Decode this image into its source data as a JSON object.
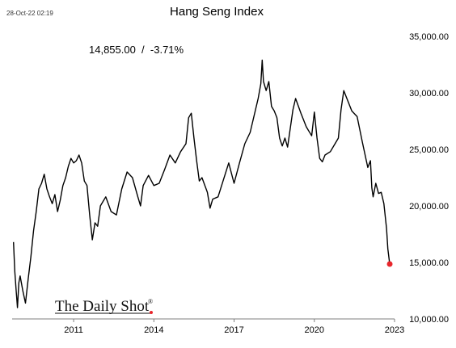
{
  "timestamp": "28-Oct-22 02:19",
  "brand": {
    "name": "The Daily Shot",
    "mark": "®"
  },
  "colors": {
    "line": "#000000",
    "marker": "#e8262c",
    "axis": "#7f7f7f"
  },
  "chart_data": {
    "type": "line",
    "title": "Hang Seng Index",
    "annotation": "14,855.00  /  -3.71%",
    "xlabel": "",
    "ylabel": "",
    "xlim": [
      2008.7,
      2023.0
    ],
    "ylim": [
      10000,
      35000
    ],
    "y_ticks": [
      10000,
      15000,
      20000,
      25000,
      30000,
      35000
    ],
    "y_tick_labels": [
      "10,000.00",
      "15,000.00",
      "20,000.00",
      "25,000.00",
      "30,000.00",
      "35,000.00"
    ],
    "y_axis_side": "right",
    "x_ticks": [
      2011,
      2014,
      2017,
      2020,
      2023
    ],
    "x_tick_labels": [
      "2011",
      "2014",
      "2017",
      "2020",
      "2023"
    ],
    "grid": false,
    "series": [
      {
        "x": [
          2008.75,
          2008.8,
          2008.85,
          2008.9,
          2008.95,
          2009.0,
          2009.1,
          2009.2,
          2009.3,
          2009.4,
          2009.5,
          2009.6,
          2009.7,
          2009.8,
          2009.9,
          2010.0,
          2010.1,
          2010.2,
          2010.3,
          2010.4,
          2010.5,
          2010.6,
          2010.7,
          2010.8,
          2010.9,
          2011.0,
          2011.1,
          2011.2,
          2011.3,
          2011.4,
          2011.5,
          2011.6,
          2011.7,
          2011.8,
          2011.9,
          2012.0,
          2012.2,
          2012.4,
          2012.6,
          2012.8,
          2013.0,
          2013.2,
          2013.4,
          2013.5,
          2013.6,
          2013.8,
          2014.0,
          2014.2,
          2014.4,
          2014.6,
          2014.8,
          2015.0,
          2015.2,
          2015.3,
          2015.4,
          2015.5,
          2015.6,
          2015.7,
          2015.8,
          2016.0,
          2016.1,
          2016.2,
          2016.4,
          2016.6,
          2016.8,
          2017.0,
          2017.2,
          2017.4,
          2017.6,
          2017.8,
          2017.9,
          2018.0,
          2018.05,
          2018.1,
          2018.2,
          2018.3,
          2018.4,
          2018.5,
          2018.6,
          2018.7,
          2018.8,
          2018.9,
          2019.0,
          2019.2,
          2019.3,
          2019.5,
          2019.7,
          2019.9,
          2020.0,
          2020.1,
          2020.2,
          2020.3,
          2020.4,
          2020.6,
          2020.8,
          2020.9,
          2021.0,
          2021.1,
          2021.2,
          2021.4,
          2021.6,
          2021.8,
          2022.0,
          2022.1,
          2022.15,
          2022.2,
          2022.3,
          2022.4,
          2022.5,
          2022.6,
          2022.7,
          2022.75,
          2022.82
        ],
        "values": [
          16800,
          14200,
          12500,
          11000,
          13200,
          13800,
          12500,
          11400,
          13500,
          15500,
          17800,
          19500,
          21500,
          22000,
          22800,
          21500,
          20800,
          20200,
          21000,
          19500,
          20500,
          21800,
          22500,
          23500,
          24200,
          23800,
          24000,
          24500,
          23800,
          22200,
          21800,
          19200,
          17000,
          18500,
          18200,
          20000,
          20800,
          19500,
          19200,
          21500,
          23000,
          22500,
          20800,
          20000,
          21800,
          22700,
          21800,
          22000,
          23200,
          24500,
          23800,
          24800,
          25500,
          27800,
          28200,
          26000,
          24000,
          22200,
          22500,
          21200,
          19800,
          20600,
          20800,
          22300,
          23800,
          22000,
          23800,
          25500,
          26500,
          28500,
          29500,
          30800,
          32900,
          31000,
          30200,
          31000,
          28800,
          28400,
          27800,
          26000,
          25300,
          26000,
          25200,
          28500,
          29500,
          28200,
          27000,
          26200,
          28300,
          26000,
          24200,
          23900,
          24500,
          24800,
          25600,
          26000,
          28500,
          30200,
          29600,
          28400,
          27900,
          25600,
          23400,
          24000,
          21600,
          20800,
          22000,
          21100,
          21200,
          20200,
          18000,
          16200,
          14855
        ]
      }
    ],
    "last_point": {
      "x": 2022.82,
      "y": 14855
    }
  }
}
